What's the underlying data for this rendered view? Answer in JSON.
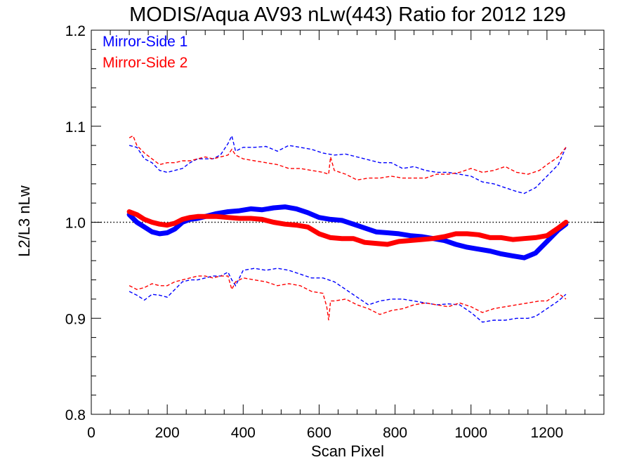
{
  "chart_data": {
    "type": "line",
    "title": "MODIS/Aqua AV93 nLw(443) Ratio for 2012 129",
    "xlabel": "Scan Pixel",
    "ylabel": "L2/L3 nLw",
    "xlim": [
      0,
      1350
    ],
    "ylim": [
      0.8,
      1.2
    ],
    "x_ticks": [
      0,
      200,
      400,
      600,
      800,
      1000,
      1200
    ],
    "x_tick_labels": [
      "0",
      "200",
      "400",
      "600",
      "800",
      "1000",
      "1200"
    ],
    "y_ticks": [
      0.8,
      0.9,
      1.0,
      1.1,
      1.2
    ],
    "y_tick_labels": [
      "0.8",
      "0.9",
      "1.0",
      "1.1",
      "1.2"
    ],
    "reference_line": 1.0,
    "legend_position": "top-left",
    "colors": {
      "ms1": "#0000ff",
      "ms2": "#ff0000",
      "axes": "#000000"
    },
    "series": [
      {
        "name": "Mirror-Side 1",
        "style": "mean",
        "color": "#0000ff",
        "x": [
          100,
          120,
          140,
          160,
          180,
          200,
          220,
          240,
          260,
          280,
          300,
          330,
          360,
          390,
          420,
          450,
          480,
          510,
          540,
          570,
          600,
          630,
          660,
          690,
          720,
          750,
          780,
          810,
          840,
          870,
          900,
          930,
          960,
          990,
          1020,
          1050,
          1080,
          1110,
          1140,
          1170,
          1200,
          1230,
          1250
        ],
        "values": [
          1.008,
          1.0,
          0.995,
          0.99,
          0.988,
          0.989,
          0.993,
          1.0,
          1.003,
          1.004,
          1.006,
          1.009,
          1.011,
          1.012,
          1.014,
          1.013,
          1.015,
          1.016,
          1.014,
          1.01,
          1.005,
          1.003,
          1.002,
          0.998,
          0.994,
          0.99,
          0.989,
          0.988,
          0.986,
          0.985,
          0.983,
          0.981,
          0.977,
          0.974,
          0.972,
          0.97,
          0.967,
          0.965,
          0.963,
          0.968,
          0.98,
          0.992,
          0.998
        ]
      },
      {
        "name": "Mirror-Side 2",
        "style": "mean",
        "color": "#ff0000",
        "x": [
          100,
          120,
          140,
          160,
          180,
          200,
          220,
          240,
          260,
          280,
          300,
          330,
          360,
          390,
          420,
          450,
          480,
          510,
          540,
          570,
          600,
          630,
          660,
          690,
          720,
          750,
          780,
          810,
          840,
          870,
          900,
          930,
          960,
          990,
          1020,
          1050,
          1080,
          1110,
          1140,
          1170,
          1200,
          1230,
          1250
        ],
        "values": [
          1.011,
          1.008,
          1.003,
          1.0,
          0.998,
          0.997,
          0.999,
          1.003,
          1.005,
          1.006,
          1.006,
          1.006,
          1.005,
          1.004,
          1.004,
          1.003,
          1.0,
          0.998,
          0.997,
          0.995,
          0.988,
          0.984,
          0.983,
          0.983,
          0.979,
          0.978,
          0.977,
          0.98,
          0.981,
          0.982,
          0.983,
          0.985,
          0.988,
          0.988,
          0.987,
          0.984,
          0.984,
          0.982,
          0.983,
          0.984,
          0.986,
          0.994,
          1.0
        ]
      },
      {
        "style": "upper",
        "color": "#0000ff",
        "x": [
          100,
          120,
          140,
          160,
          180,
          200,
          220,
          240,
          260,
          280,
          300,
          320,
          340,
          360,
          370,
          380,
          400,
          430,
          460,
          490,
          520,
          550,
          580,
          610,
          640,
          670,
          700,
          730,
          760,
          790,
          820,
          850,
          880,
          910,
          940,
          970,
          1000,
          1030,
          1060,
          1090,
          1120,
          1140,
          1170,
          1200,
          1230,
          1250
        ],
        "values": [
          1.08,
          1.078,
          1.066,
          1.062,
          1.054,
          1.052,
          1.054,
          1.056,
          1.062,
          1.066,
          1.066,
          1.066,
          1.07,
          1.082,
          1.09,
          1.074,
          1.078,
          1.078,
          1.079,
          1.074,
          1.08,
          1.078,
          1.076,
          1.072,
          1.07,
          1.071,
          1.068,
          1.065,
          1.062,
          1.062,
          1.056,
          1.058,
          1.054,
          1.052,
          1.052,
          1.05,
          1.048,
          1.042,
          1.04,
          1.036,
          1.032,
          1.03,
          1.036,
          1.048,
          1.06,
          1.078
        ]
      },
      {
        "style": "upper",
        "color": "#ff0000",
        "x": [
          100,
          110,
          120,
          140,
          160,
          180,
          200,
          220,
          240,
          260,
          280,
          300,
          320,
          340,
          360,
          370,
          380,
          400,
          430,
          460,
          490,
          520,
          550,
          580,
          610,
          625,
          630,
          640,
          670,
          700,
          730,
          760,
          790,
          820,
          850,
          880,
          910,
          940,
          970,
          1000,
          1030,
          1060,
          1090,
          1120,
          1150,
          1180,
          1200,
          1230,
          1250
        ],
        "values": [
          1.088,
          1.09,
          1.08,
          1.072,
          1.066,
          1.06,
          1.062,
          1.062,
          1.064,
          1.064,
          1.066,
          1.068,
          1.066,
          1.068,
          1.07,
          1.076,
          1.07,
          1.066,
          1.064,
          1.062,
          1.06,
          1.056,
          1.056,
          1.054,
          1.052,
          1.05,
          1.068,
          1.054,
          1.05,
          1.044,
          1.046,
          1.046,
          1.048,
          1.046,
          1.046,
          1.046,
          1.05,
          1.05,
          1.052,
          1.056,
          1.052,
          1.054,
          1.058,
          1.052,
          1.05,
          1.054,
          1.06,
          1.068,
          1.078
        ]
      },
      {
        "style": "lower",
        "color": "#0000ff",
        "x": [
          100,
          120,
          140,
          160,
          180,
          200,
          220,
          240,
          260,
          280,
          300,
          320,
          340,
          360,
          370,
          380,
          400,
          430,
          460,
          490,
          520,
          550,
          580,
          610,
          640,
          670,
          700,
          730,
          760,
          790,
          820,
          850,
          880,
          910,
          940,
          970,
          1000,
          1030,
          1060,
          1090,
          1120,
          1150,
          1170,
          1200,
          1230,
          1250
        ],
        "values": [
          0.928,
          0.924,
          0.919,
          0.925,
          0.924,
          0.922,
          0.93,
          0.938,
          0.94,
          0.94,
          0.942,
          0.944,
          0.944,
          0.948,
          0.94,
          0.934,
          0.95,
          0.952,
          0.95,
          0.952,
          0.95,
          0.946,
          0.942,
          0.942,
          0.938,
          0.93,
          0.922,
          0.914,
          0.918,
          0.92,
          0.92,
          0.918,
          0.916,
          0.914,
          0.915,
          0.914,
          0.906,
          0.896,
          0.898,
          0.898,
          0.9,
          0.9,
          0.902,
          0.91,
          0.918,
          0.925
        ]
      },
      {
        "style": "lower",
        "color": "#ff0000",
        "x": [
          100,
          120,
          140,
          160,
          180,
          200,
          220,
          240,
          260,
          280,
          300,
          320,
          340,
          360,
          370,
          380,
          400,
          430,
          460,
          490,
          520,
          550,
          580,
          610,
          620,
          625,
          630,
          640,
          670,
          700,
          730,
          760,
          790,
          820,
          850,
          880,
          910,
          940,
          970,
          1000,
          1030,
          1060,
          1090,
          1120,
          1150,
          1180,
          1200,
          1230,
          1250
        ],
        "values": [
          0.934,
          0.93,
          0.932,
          0.936,
          0.934,
          0.934,
          0.938,
          0.94,
          0.942,
          0.944,
          0.944,
          0.942,
          0.944,
          0.944,
          0.93,
          0.938,
          0.942,
          0.94,
          0.938,
          0.934,
          0.936,
          0.934,
          0.928,
          0.926,
          0.912,
          0.898,
          0.918,
          0.918,
          0.92,
          0.914,
          0.91,
          0.904,
          0.908,
          0.91,
          0.914,
          0.916,
          0.914,
          0.912,
          0.916,
          0.912,
          0.906,
          0.91,
          0.912,
          0.914,
          0.916,
          0.918,
          0.918,
          0.926,
          0.92
        ]
      }
    ]
  }
}
